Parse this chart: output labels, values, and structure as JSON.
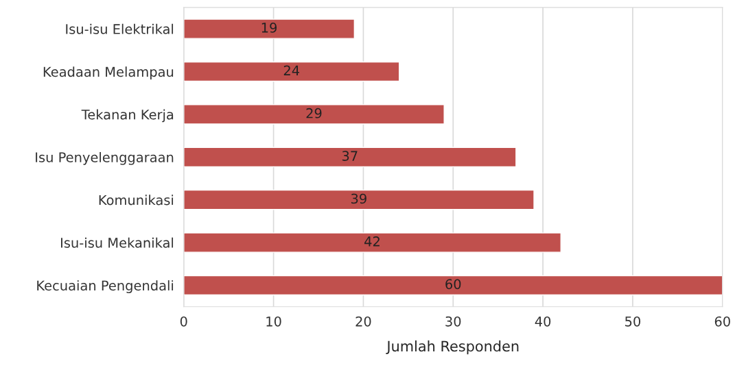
{
  "chart_data": {
    "type": "bar",
    "orientation": "horizontal",
    "xlabel": "Jumlah Responden",
    "categories": [
      "Isu-isu Elektrikal",
      "Keadaan Melampau",
      "Tekanan Kerja",
      "Isu Penyelenggaraan",
      "Komunikasi",
      "Isu-isu Mekanikal",
      "Kecuaian Pengendali"
    ],
    "values": [
      19,
      24,
      29,
      37,
      39,
      42,
      60
    ],
    "color": "#c0504d",
    "xlim": [
      0,
      60
    ],
    "xticks": [
      0,
      10,
      20,
      30,
      40,
      50,
      60
    ],
    "grid": "x",
    "data_labels": true
  }
}
